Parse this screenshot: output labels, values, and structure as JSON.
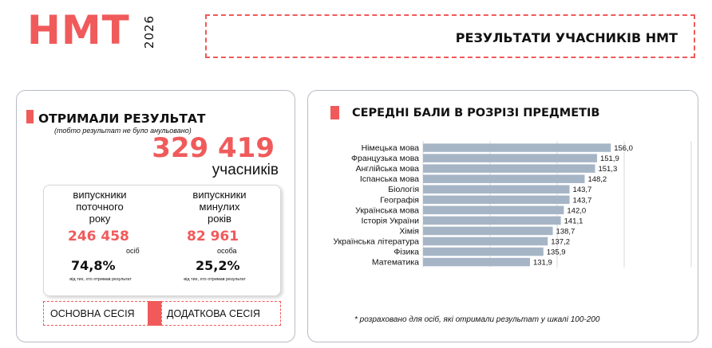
{
  "logo": {
    "text": "НМТ",
    "year": "2026"
  },
  "header": {
    "title": "РЕЗУЛЬТАТИ УЧАСНИКІВ НМТ"
  },
  "left": {
    "title": "ОТРИМАЛИ РЕЗУЛЬТАТ",
    "subtitle": "(тобто результат не було анульовано)",
    "total": "329 419",
    "total_unit": "учасників",
    "current": {
      "desc": "випускники поточного року",
      "value": "246 458",
      "unit": "осіб",
      "pct": "74,8%",
      "note": "від тих, хто отримав результат"
    },
    "past": {
      "desc": "випускники минулих років",
      "value": "82 961",
      "unit": "особа",
      "pct": "25,2%",
      "note": "від тих, хто отримав результат"
    },
    "sessions": {
      "main": "ОСНОВНА СЕСІЯ",
      "extra": "ДОДАТКОВА СЕСІЯ"
    }
  },
  "right": {
    "title": "СЕРЕДНІ БАЛИ В РОЗРІЗІ ПРЕДМЕТІВ",
    "footnote": "* розраховано для осіб, які отримали результат у шкалі 100-200"
  },
  "colors": {
    "accent": "#f05a5b",
    "bar": "#a6b5c6"
  },
  "chart_data": {
    "type": "bar",
    "orientation": "horizontal",
    "title": "СЕРЕДНІ БАЛИ В РОЗРІЗІ ПРЕДМЕТІВ",
    "categories": [
      "Німецька мова",
      "Французька мова",
      "Англійська мова",
      "Іспанська мова",
      "Біологія",
      "Географія",
      "Українська мова",
      "Історія України",
      "Хімія",
      "Українська література",
      "Фізика",
      "Математика"
    ],
    "values": [
      156.0,
      151.9,
      151.3,
      148.2,
      143.7,
      143.7,
      142.0,
      141.1,
      138.7,
      137.2,
      135.9,
      131.9
    ],
    "labels": [
      "156,0",
      "151,9",
      "151,3",
      "148,2",
      "143,7",
      "143,7",
      "142,0",
      "141,1",
      "138,7",
      "137,2",
      "135,9",
      "131,9"
    ],
    "xlim": [
      100,
      180
    ],
    "grid": true,
    "legend": "none"
  }
}
